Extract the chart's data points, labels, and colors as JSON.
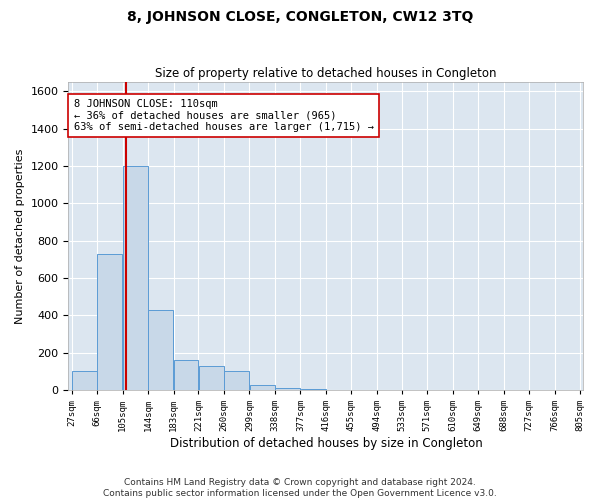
{
  "title": "8, JOHNSON CLOSE, CONGLETON, CW12 3TQ",
  "subtitle": "Size of property relative to detached houses in Congleton",
  "xlabel": "Distribution of detached houses by size in Congleton",
  "ylabel": "Number of detached properties",
  "footer_line1": "Contains HM Land Registry data © Crown copyright and database right 2024.",
  "footer_line2": "Contains public sector information licensed under the Open Government Licence v3.0.",
  "bar_left_edges": [
    27,
    66,
    105,
    144,
    183,
    221,
    260,
    299,
    338,
    377,
    416,
    455,
    494,
    533,
    571,
    610,
    649,
    688,
    727,
    766
  ],
  "bar_widths": [
    39,
    39,
    39,
    39,
    38,
    39,
    39,
    39,
    39,
    39,
    39,
    39,
    39,
    38,
    39,
    39,
    39,
    39,
    39,
    39
  ],
  "bar_heights": [
    100,
    730,
    1200,
    430,
    160,
    130,
    100,
    30,
    10,
    5,
    0,
    0,
    0,
    0,
    0,
    0,
    0,
    0,
    0,
    0
  ],
  "bar_color": "#c8d8e8",
  "bar_edge_color": "#5b9bd5",
  "grid_color": "#ffffff",
  "bg_color": "#dce6f0",
  "property_x": 110,
  "property_line_color": "#cc0000",
  "annotation_line1": "8 JOHNSON CLOSE: 110sqm",
  "annotation_line2": "← 36% of detached houses are smaller (965)",
  "annotation_line3": "63% of semi-detached houses are larger (1,715) →",
  "annotation_box_color": "#ffffff",
  "annotation_box_edge_color": "#cc0000",
  "ylim": [
    0,
    1650
  ],
  "yticks": [
    0,
    200,
    400,
    600,
    800,
    1000,
    1200,
    1400,
    1600
  ],
  "tick_positions": [
    27,
    66,
    105,
    144,
    183,
    221,
    260,
    299,
    338,
    377,
    416,
    455,
    494,
    533,
    571,
    610,
    649,
    688,
    727,
    766,
    805
  ],
  "tick_labels": [
    "27sqm",
    "66sqm",
    "105sqm",
    "144sqm",
    "183sqm",
    "221sqm",
    "260sqm",
    "299sqm",
    "338sqm",
    "377sqm",
    "416sqm",
    "455sqm",
    "494sqm",
    "533sqm",
    "571sqm",
    "610sqm",
    "649sqm",
    "688sqm",
    "727sqm",
    "766sqm",
    "805sqm"
  ],
  "xlim": [
    22,
    810
  ]
}
